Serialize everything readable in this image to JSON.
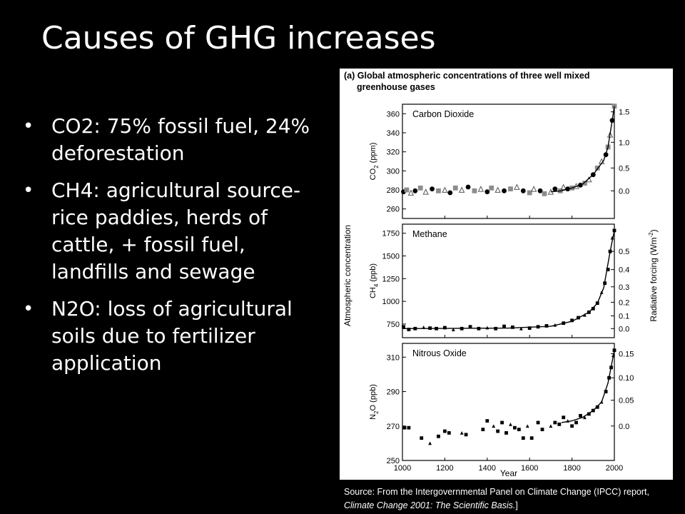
{
  "slide": {
    "title": "Causes of GHG increases",
    "bullets": [
      "CO2: 75% fossil fuel, 24% deforestation",
      "CH4: agricultural source- rice paddies, herds of cattle, + fossil fuel, landfills and sewage",
      "N2O: loss of agricultural soils due to fertilizer application"
    ],
    "source_prefix": "Source: From the Intergovernmental Panel on Climate Change (IPCC) report, ",
    "source_italic": "Climate Change 2001: The Scientific Basis.",
    "source_suffix": "]"
  },
  "chart_data": {
    "type": "scatter",
    "title_line1": "(a) Global atmospheric concentrations of three well mixed",
    "title_line2": "greenhouse gases",
    "xlabel": "Year",
    "xlim": [
      1000,
      2000
    ],
    "xticks": [
      1000,
      1200,
      1400,
      1600,
      1800,
      2000
    ],
    "left_ylabel": "Atmospheric concentration",
    "right_ylabel": "Radiative forcing (Wm",
    "right_ylabel_sup": "-2",
    "right_ylabel_end": ")",
    "colors": {
      "data": "#000000",
      "grey": "#8c8c8c"
    },
    "panels": [
      {
        "name": "Carbon Dioxide",
        "ylabel": "CO",
        "ylabel_sub": "2",
        "ylabel_unit": " (ppm)",
        "ylim": [
          250,
          370
        ],
        "yticks": [
          260,
          280,
          300,
          320,
          340,
          360
        ],
        "forcing_ticks": [
          {
            "label": "0.0",
            "at": 279
          },
          {
            "label": "0.5",
            "at": 303
          },
          {
            "label": "1.0",
            "at": 330
          },
          {
            "label": "1.5",
            "at": 362
          }
        ],
        "points": [
          [
            1005,
            278
          ],
          [
            1020,
            280
          ],
          [
            1040,
            277
          ],
          [
            1060,
            279
          ],
          [
            1085,
            282
          ],
          [
            1110,
            278
          ],
          [
            1140,
            281
          ],
          [
            1170,
            279
          ],
          [
            1200,
            280
          ],
          [
            1225,
            277
          ],
          [
            1250,
            282
          ],
          [
            1280,
            280
          ],
          [
            1310,
            283
          ],
          [
            1340,
            279
          ],
          [
            1370,
            281
          ],
          [
            1400,
            278
          ],
          [
            1420,
            282
          ],
          [
            1450,
            280
          ],
          [
            1480,
            279
          ],
          [
            1510,
            281
          ],
          [
            1540,
            283
          ],
          [
            1570,
            279
          ],
          [
            1600,
            277
          ],
          [
            1620,
            281
          ],
          [
            1650,
            279
          ],
          [
            1670,
            276
          ],
          [
            1700,
            278
          ],
          [
            1720,
            281
          ],
          [
            1745,
            279
          ],
          [
            1760,
            283
          ],
          [
            1780,
            281
          ],
          [
            1800,
            282
          ],
          [
            1820,
            284
          ],
          [
            1840,
            285
          ],
          [
            1860,
            287
          ],
          [
            1880,
            291
          ],
          [
            1900,
            296
          ],
          [
            1920,
            303
          ],
          [
            1940,
            310
          ],
          [
            1960,
            317
          ],
          [
            1970,
            325
          ],
          [
            1980,
            338
          ],
          [
            1990,
            353
          ],
          [
            2000,
            368
          ]
        ],
        "curve": [
          [
            1700,
            278
          ],
          [
            1750,
            279
          ],
          [
            1800,
            282
          ],
          [
            1850,
            286
          ],
          [
            1900,
            296
          ],
          [
            1950,
            311
          ],
          [
            1970,
            325
          ],
          [
            1990,
            353
          ],
          [
            2000,
            368
          ]
        ]
      },
      {
        "name": "Methane",
        "ylabel": "CH",
        "ylabel_sub": "4",
        "ylabel_unit": " (ppb)",
        "ylim": [
          600,
          1850
        ],
        "yticks": [
          750,
          1000,
          1250,
          1500,
          1750
        ],
        "forcing_ticks": [
          {
            "label": "0.0",
            "at": 700
          },
          {
            "label": "0.1",
            "at": 840
          },
          {
            "label": "0.2",
            "at": 990
          },
          {
            "label": "0.3",
            "at": 1160
          },
          {
            "label": "0.4",
            "at": 1350
          },
          {
            "label": "0.5",
            "at": 1550
          }
        ],
        "points": [
          [
            1005,
            720
          ],
          [
            1030,
            690
          ],
          [
            1060,
            700
          ],
          [
            1100,
            715
          ],
          [
            1130,
            705
          ],
          [
            1160,
            700
          ],
          [
            1200,
            710
          ],
          [
            1240,
            690
          ],
          [
            1280,
            700
          ],
          [
            1320,
            720
          ],
          [
            1360,
            700
          ],
          [
            1400,
            710
          ],
          [
            1440,
            700
          ],
          [
            1480,
            725
          ],
          [
            1520,
            715
          ],
          [
            1560,
            700
          ],
          [
            1600,
            705
          ],
          [
            1640,
            720
          ],
          [
            1680,
            730
          ],
          [
            1720,
            740
          ],
          [
            1760,
            760
          ],
          [
            1800,
            790
          ],
          [
            1830,
            820
          ],
          [
            1860,
            850
          ],
          [
            1880,
            880
          ],
          [
            1900,
            920
          ],
          [
            1920,
            980
          ],
          [
            1940,
            1100
          ],
          [
            1955,
            1200
          ],
          [
            1970,
            1350
          ],
          [
            1980,
            1550
          ],
          [
            1990,
            1700
          ],
          [
            2000,
            1780
          ]
        ],
        "curve": [
          [
            1000,
            700
          ],
          [
            1500,
            705
          ],
          [
            1700,
            725
          ],
          [
            1800,
            780
          ],
          [
            1880,
            880
          ],
          [
            1920,
            980
          ],
          [
            1950,
            1150
          ],
          [
            1980,
            1550
          ],
          [
            2000,
            1780
          ]
        ]
      },
      {
        "name": "Nitrous Oxide",
        "ylabel": "N",
        "ylabel_sub": "2",
        "ylabel_unit": "O (ppb)",
        "ylim": [
          250,
          318
        ],
        "yticks": [
          250,
          270,
          290,
          310
        ],
        "forcing_ticks": [
          {
            "label": "0.0",
            "at": 270
          },
          {
            "label": "0.05",
            "at": 285
          },
          {
            "label": "0.10",
            "at": 298
          },
          {
            "label": "0.15",
            "at": 312
          }
        ],
        "points": [
          [
            1010,
            269
          ],
          [
            1030,
            269
          ],
          [
            1090,
            263
          ],
          [
            1130,
            260
          ],
          [
            1170,
            264
          ],
          [
            1200,
            267
          ],
          [
            1220,
            266
          ],
          [
            1280,
            266
          ],
          [
            1300,
            265
          ],
          [
            1380,
            268
          ],
          [
            1400,
            273
          ],
          [
            1430,
            270
          ],
          [
            1450,
            267
          ],
          [
            1470,
            272
          ],
          [
            1490,
            266
          ],
          [
            1510,
            271
          ],
          [
            1530,
            269
          ],
          [
            1550,
            268
          ],
          [
            1570,
            263
          ],
          [
            1590,
            270
          ],
          [
            1610,
            263
          ],
          [
            1640,
            272
          ],
          [
            1660,
            268
          ],
          [
            1700,
            270
          ],
          [
            1720,
            272
          ],
          [
            1740,
            271
          ],
          [
            1760,
            275
          ],
          [
            1780,
            273
          ],
          [
            1800,
            270
          ],
          [
            1820,
            272
          ],
          [
            1840,
            276
          ],
          [
            1860,
            275
          ],
          [
            1880,
            277
          ],
          [
            1900,
            279
          ],
          [
            1920,
            281
          ],
          [
            1940,
            284
          ],
          [
            1960,
            290
          ],
          [
            1975,
            298
          ],
          [
            1985,
            304
          ],
          [
            1995,
            311
          ],
          [
            2000,
            314
          ]
        ],
        "curve": [
          [
            1750,
            272
          ],
          [
            1800,
            273
          ],
          [
            1850,
            275
          ],
          [
            1900,
            279
          ],
          [
            1940,
            284
          ],
          [
            1970,
            295
          ],
          [
            2000,
            314
          ]
        ]
      }
    ]
  }
}
